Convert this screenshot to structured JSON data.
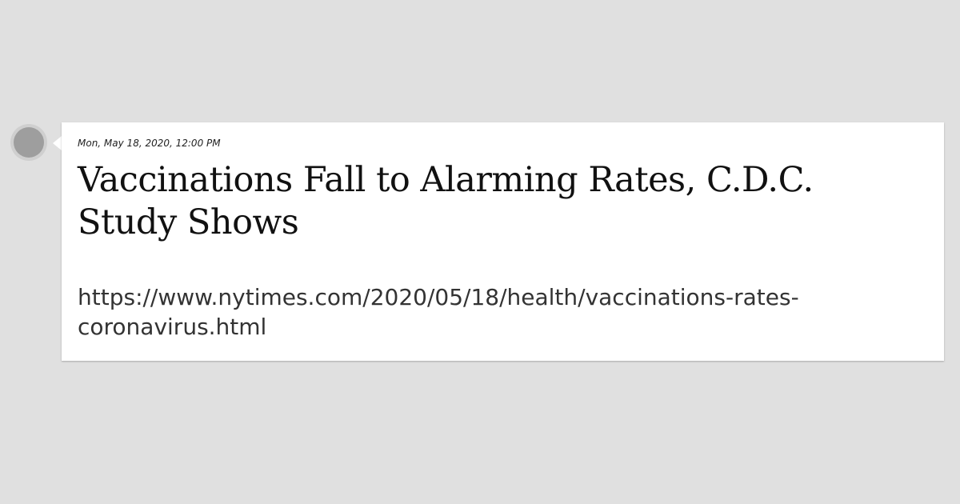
{
  "post": {
    "timestamp": "Mon, May 18, 2020, 12:00 PM",
    "title": "Vaccinations Fall to Alarming Rates, C.D.C. Study Shows",
    "url": "https://www.nytimes.com/2020/05/18/health/vaccinations-rates-coronavirus.html"
  },
  "colors": {
    "background": "#e0e0e0",
    "card": "#ffffff",
    "avatar": "#9e9e9e"
  }
}
